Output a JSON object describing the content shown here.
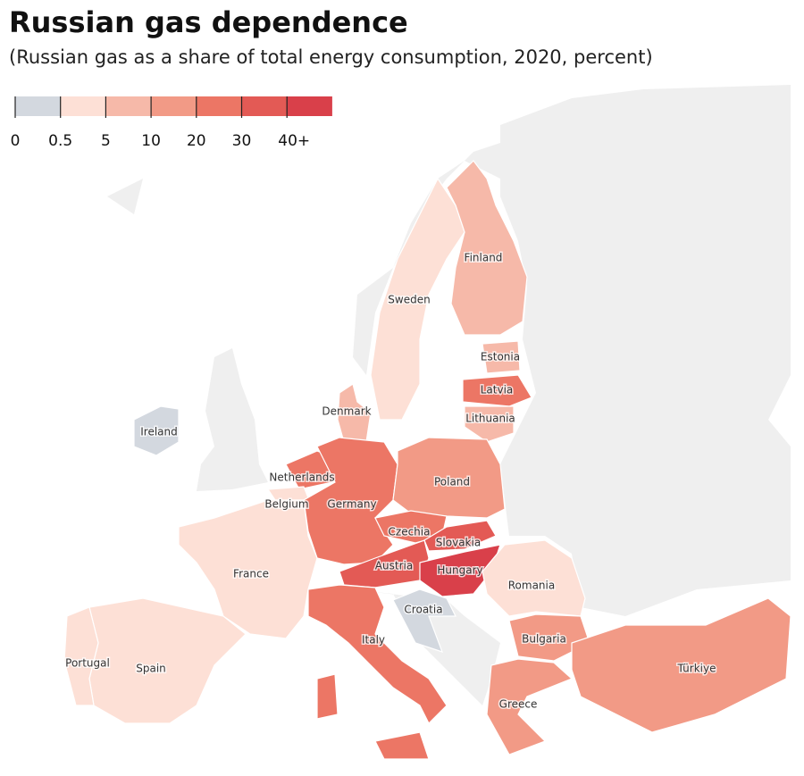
{
  "title": "Russian gas dependence",
  "subtitle": "(Russian gas as a share of total energy consumption, 2020, percent)",
  "legend": {
    "labels": [
      "0",
      "0.5",
      "5",
      "10",
      "20",
      "30",
      "40+"
    ],
    "colors": [
      "#d3d8df",
      "#fde0d6",
      "#f6b9a9",
      "#f29a86",
      "#ec7665",
      "#e35a55",
      "#d9404a"
    ]
  },
  "countries": [
    {
      "name": "Finland",
      "color": "#f6b9a9"
    },
    {
      "name": "Sweden",
      "color": "#fde0d6"
    },
    {
      "name": "Estonia",
      "color": "#f6b9a9"
    },
    {
      "name": "Latvia",
      "color": "#ec7665"
    },
    {
      "name": "Lithuania",
      "color": "#f6b9a9"
    },
    {
      "name": "Denmark",
      "color": "#f6b9a9"
    },
    {
      "name": "Ireland",
      "color": "#d3d8df"
    },
    {
      "name": "Netherlands",
      "color": "#ec7665"
    },
    {
      "name": "Belgium",
      "color": "#fde0d6"
    },
    {
      "name": "Germany",
      "color": "#ec7665"
    },
    {
      "name": "Poland",
      "color": "#f29a86"
    },
    {
      "name": "Czechia",
      "color": "#ec7665"
    },
    {
      "name": "Slovakia",
      "color": "#e35a55"
    },
    {
      "name": "Austria",
      "color": "#e35a55"
    },
    {
      "name": "Hungary",
      "color": "#d9404a"
    },
    {
      "name": "Romania",
      "color": "#fde0d6"
    },
    {
      "name": "Croatia",
      "color": "#d3d8df"
    },
    {
      "name": "Italy",
      "color": "#ec7665"
    },
    {
      "name": "France",
      "color": "#fde0d6"
    },
    {
      "name": "Spain",
      "color": "#fde0d6"
    },
    {
      "name": "Portugal",
      "color": "#fde0d6"
    },
    {
      "name": "Bulgaria",
      "color": "#f29a86"
    },
    {
      "name": "Greece",
      "color": "#f29a86"
    },
    {
      "name": "Türkiye",
      "color": "#f29a86"
    }
  ]
}
